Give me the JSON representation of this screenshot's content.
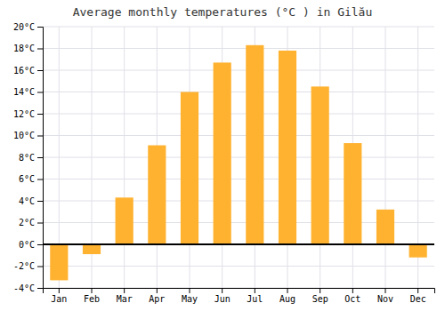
{
  "chart_data": {
    "type": "bar",
    "title": "Average monthly temperatures (°C ) in Gilău",
    "categories": [
      "Jan",
      "Feb",
      "Mar",
      "Apr",
      "May",
      "Jun",
      "Jul",
      "Aug",
      "Sep",
      "Oct",
      "Nov",
      "Dec"
    ],
    "values": [
      -3.3,
      -0.9,
      4.3,
      9.1,
      14.0,
      16.7,
      18.3,
      17.8,
      14.5,
      9.3,
      3.2,
      -1.2
    ],
    "color": "#FFB230",
    "ylim": [
      -4,
      20
    ],
    "yticks": [
      {
        "value": -4,
        "label": "-4°C"
      },
      {
        "value": -2,
        "label": "-2°C"
      },
      {
        "value": 0,
        "label": "0°C"
      },
      {
        "value": 2,
        "label": "2°C"
      },
      {
        "value": 4,
        "label": "4°C"
      },
      {
        "value": 6,
        "label": "6°C"
      },
      {
        "value": 8,
        "label": "8°C"
      },
      {
        "value": 10,
        "label": "10°C"
      },
      {
        "value": 12,
        "label": "12°C"
      },
      {
        "value": 14,
        "label": "14°C"
      },
      {
        "value": 16,
        "label": "16°C"
      },
      {
        "value": 18,
        "label": "18°C"
      },
      {
        "value": 20,
        "label": "20°C"
      }
    ],
    "grid": true
  }
}
